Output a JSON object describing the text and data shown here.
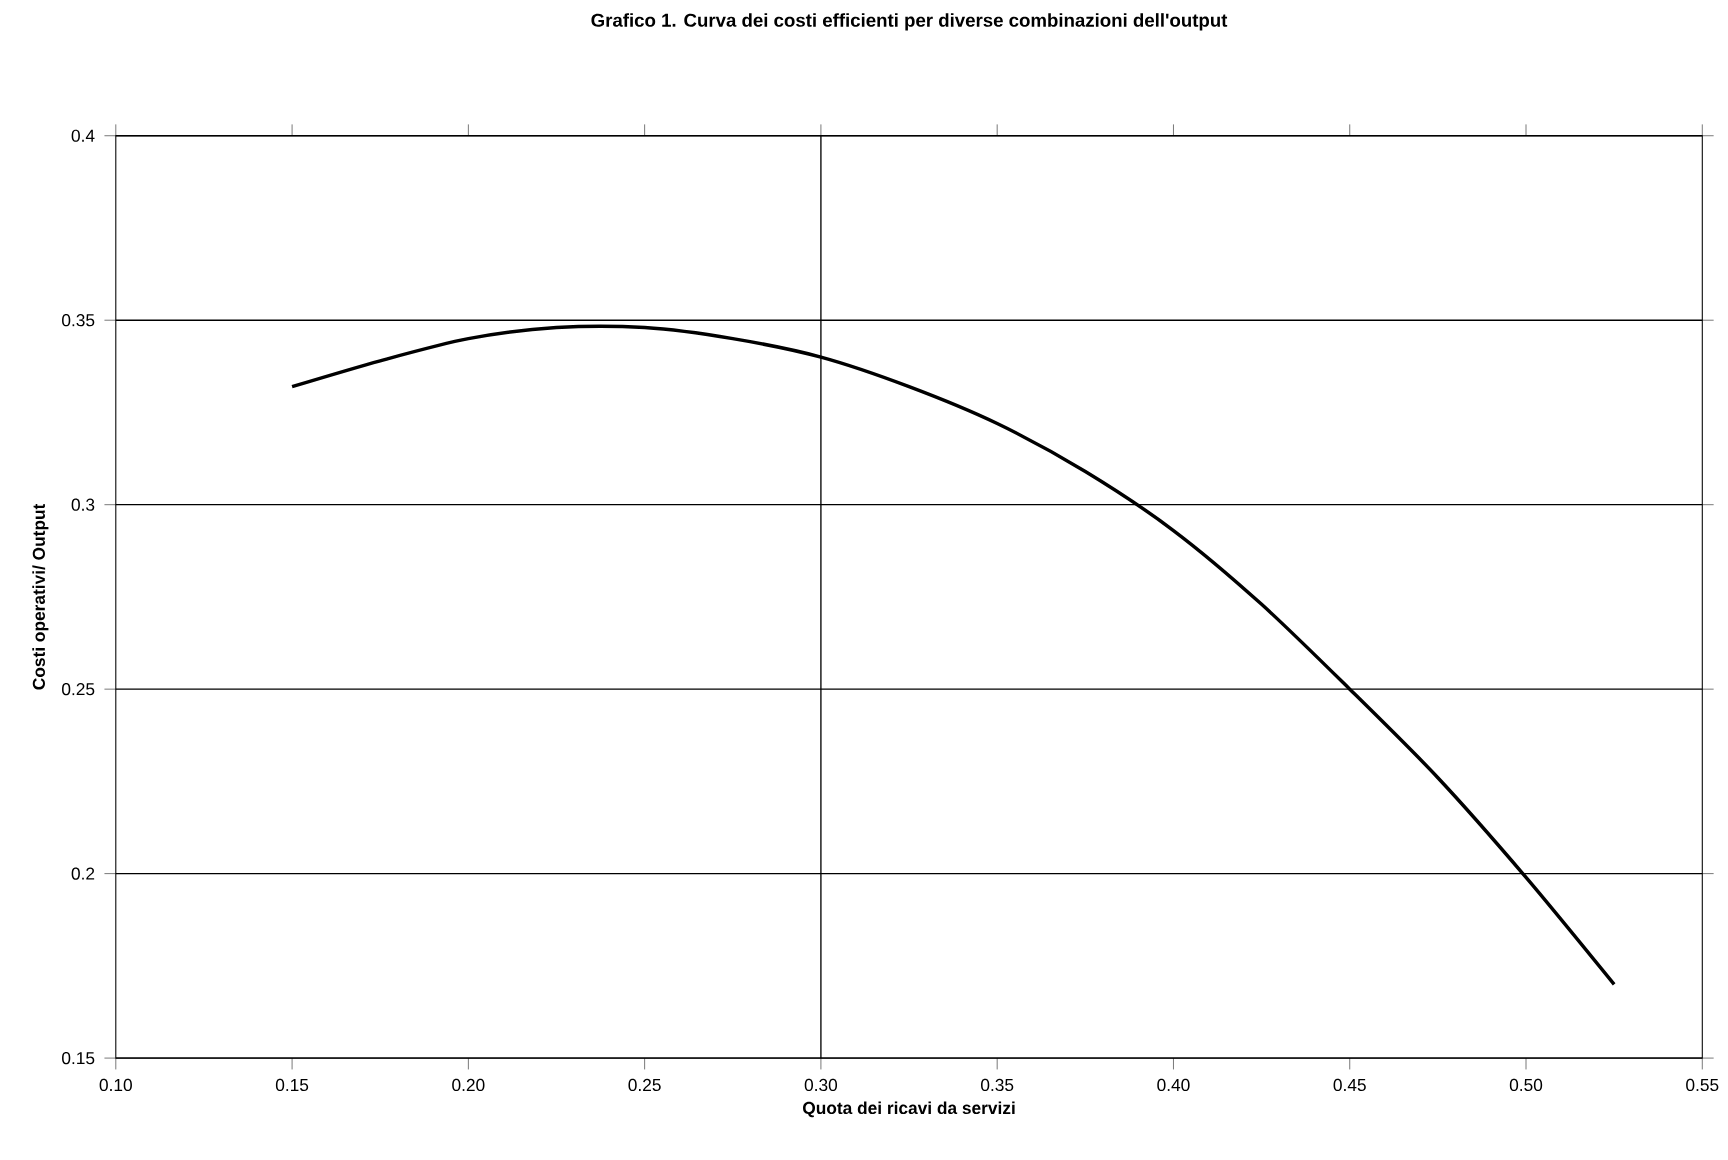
{
  "chart_data": {
    "type": "line",
    "title": "Grafico 1. Curva dei costi efficienti per diverse combinazioni dell'output",
    "xlabel": "Quota dei ricavi da servizi",
    "ylabel": "Costi operativi/ Output",
    "x": [
      0.15,
      0.175,
      0.2,
      0.225,
      0.25,
      0.275,
      0.3,
      0.325,
      0.35,
      0.375,
      0.4,
      0.425,
      0.45,
      0.475,
      0.5,
      0.525
    ],
    "series": [
      {
        "color": "#000000",
        "values": [
          0.332,
          0.339,
          0.345,
          0.348,
          0.348,
          0.345,
          0.34,
          0.332,
          0.322,
          0.309,
          0.293,
          0.273,
          0.25,
          0.226,
          0.199,
          0.17
        ]
      }
    ],
    "xlim": [
      0.1,
      0.55
    ],
    "ylim": [
      0.15,
      0.4
    ],
    "xticks": [
      {
        "value": 0.1,
        "label": "0.10"
      },
      0.15,
      {
        "value": 0.2,
        "label": "0.20"
      },
      0.25,
      {
        "value": 0.3,
        "label": "0.30"
      },
      0.35,
      {
        "value": 0.4,
        "label": "0.40"
      },
      0.45,
      {
        "value": 0.5,
        "label": "0.50"
      },
      0.55
    ],
    "yticks": [
      0.15,
      0.2,
      0.25,
      0.3,
      0.35,
      0.4
    ],
    "grid": "y",
    "marker": "none",
    "line_style": "solid",
    "ref_lines": [
      {
        "axis": "x",
        "value": 0.3,
        "color": "#000000"
      }
    ]
  }
}
